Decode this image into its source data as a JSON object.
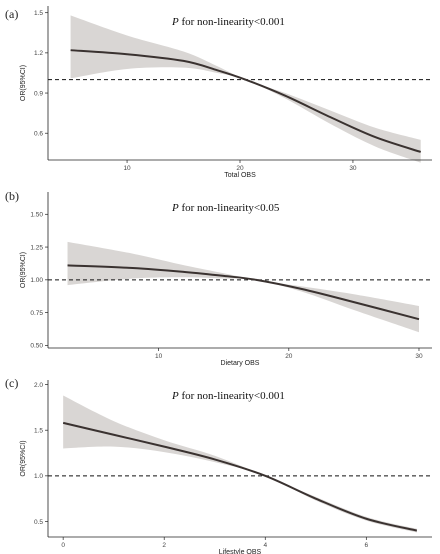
{
  "chart_data": [
    {
      "type": "line",
      "panel_label": "(a)",
      "xlabel": "Total OBS",
      "ylabel": "OR(95%CI)",
      "annotation": {
        "p": "P",
        "rest": " for non-linearity<0.001"
      },
      "xlim": [
        3,
        37
      ],
      "ylim": [
        0.4,
        1.55
      ],
      "xticks": [
        10,
        20,
        30
      ],
      "yticks": [
        {
          "v": 0.6,
          "label": "0.6"
        },
        {
          "v": 0.9,
          "label": "0.9"
        },
        {
          "v": 1.2,
          "label": "1.2"
        },
        {
          "v": 1.5,
          "label": "1.5"
        }
      ],
      "reference_line": 1.0,
      "x": [
        5,
        10,
        15,
        18,
        20.5,
        24,
        28,
        32,
        36
      ],
      "y": [
        1.22,
        1.19,
        1.14,
        1.07,
        1.0,
        0.88,
        0.72,
        0.57,
        0.46
      ],
      "lower": [
        1.01,
        1.08,
        1.09,
        1.05,
        1.0,
        0.86,
        0.67,
        0.5,
        0.38
      ],
      "upper": [
        1.48,
        1.33,
        1.21,
        1.1,
        1.0,
        0.9,
        0.77,
        0.64,
        0.55
      ]
    },
    {
      "type": "line",
      "panel_label": "(b)",
      "xlabel": "Dietary OBS",
      "ylabel": "OR(95%CI)",
      "annotation": {
        "p": "P",
        "rest": " for non-linearity<0.05"
      },
      "xlim": [
        1.5,
        31
      ],
      "ylim": [
        0.48,
        1.67
      ],
      "xticks": [
        10,
        20,
        30
      ],
      "yticks": [
        {
          "v": 0.5,
          "label": "0.50"
        },
        {
          "v": 0.75,
          "label": "0.75"
        },
        {
          "v": 1.0,
          "label": "1.00"
        },
        {
          "v": 1.25,
          "label": "1.25"
        },
        {
          "v": 1.5,
          "label": "1.50"
        }
      ],
      "reference_line": 1.0,
      "x": [
        3,
        8,
        12,
        15,
        17.5,
        21,
        25,
        30
      ],
      "y": [
        1.11,
        1.09,
        1.06,
        1.03,
        1.0,
        0.93,
        0.83,
        0.7
      ],
      "lower": [
        0.96,
        1.01,
        1.02,
        1.01,
        1.0,
        0.91,
        0.77,
        0.6
      ],
      "upper": [
        1.29,
        1.2,
        1.11,
        1.05,
        1.0,
        0.95,
        0.89,
        0.8
      ]
    },
    {
      "type": "line",
      "panel_label": "(c)",
      "xlabel": "Lifestyle OBS",
      "ylabel": "OR(95%CI)",
      "annotation": {
        "p": "P",
        "rest": " for non-linearity<0.001"
      },
      "xlim": [
        -0.3,
        7.3
      ],
      "ylim": [
        0.33,
        2.05
      ],
      "xticks": [
        0,
        2,
        4,
        6
      ],
      "yticks": [
        {
          "v": 0.5,
          "label": "0.5"
        },
        {
          "v": 1.0,
          "label": "1.0"
        },
        {
          "v": 1.5,
          "label": "1.5"
        },
        {
          "v": 2.0,
          "label": "2.0"
        }
      ],
      "reference_line": 1.0,
      "x": [
        0,
        1,
        2,
        3,
        4,
        5,
        6,
        7
      ],
      "y": [
        1.58,
        1.45,
        1.32,
        1.18,
        1.0,
        0.75,
        0.53,
        0.4
      ],
      "lower": [
        1.3,
        1.32,
        1.26,
        1.15,
        1.0,
        0.73,
        0.51,
        0.38
      ],
      "upper": [
        1.88,
        1.6,
        1.39,
        1.22,
        1.0,
        0.77,
        0.55,
        0.42
      ]
    }
  ]
}
